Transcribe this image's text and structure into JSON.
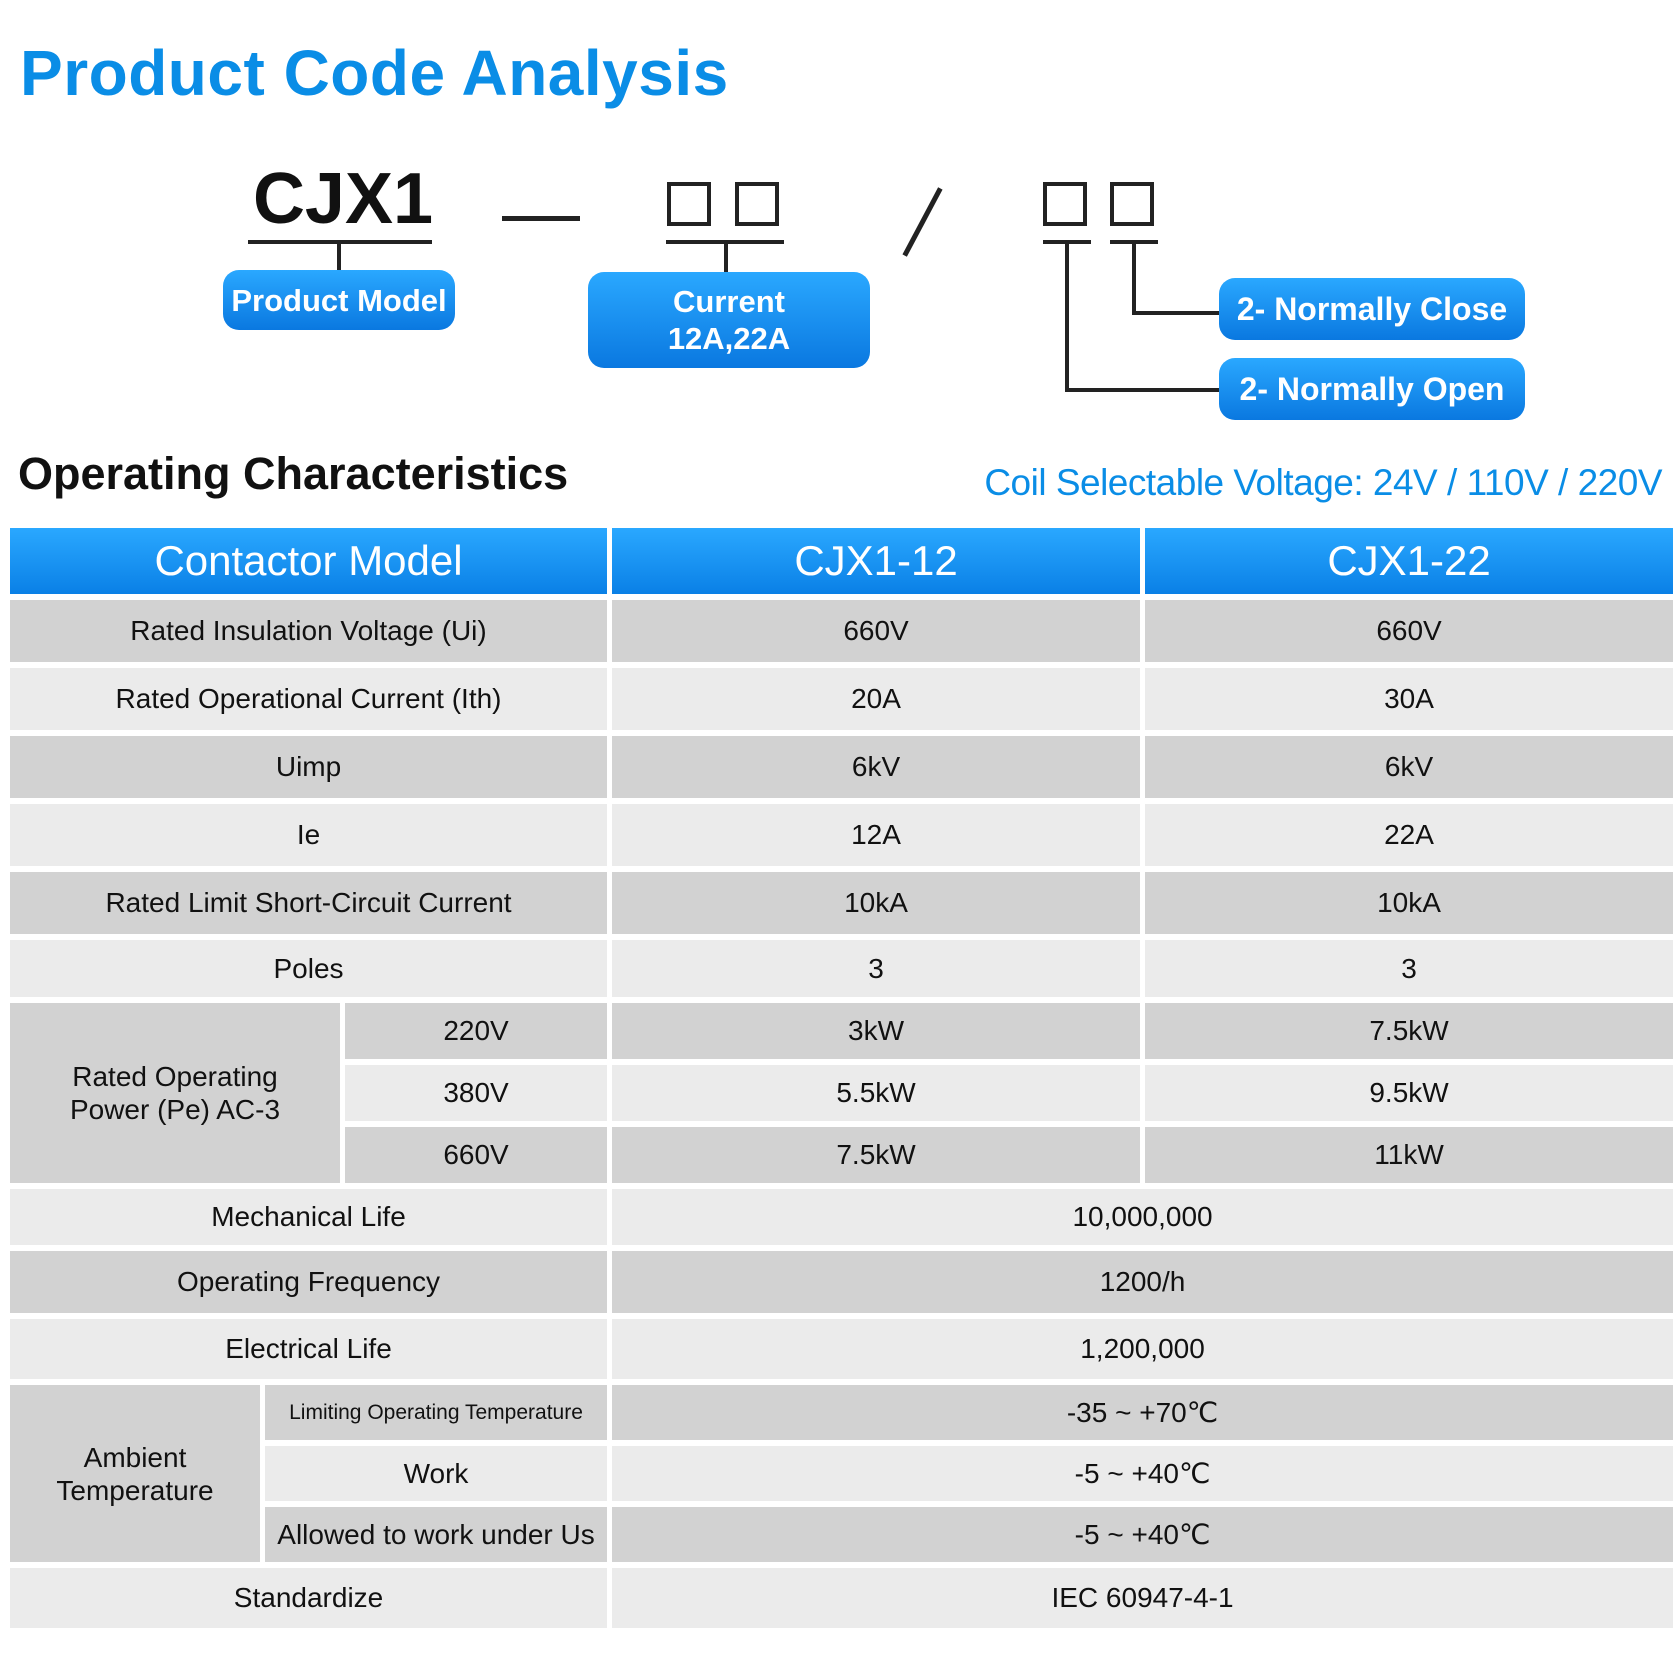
{
  "page_title": "Product Code Analysis",
  "code": {
    "model": "CJX1",
    "product_model_label": "Product Model",
    "current_label_line1": "Current",
    "current_label_line2": "12A,22A",
    "normally_close_label": "2- Normally Close",
    "normally_open_label": "2- Normally Open"
  },
  "section_title": "Operating Characteristics",
  "coil_voltage": "Coil Selectable Voltage: 24V / 110V / 220V",
  "table": {
    "headers": [
      "Contactor Model",
      "CJX1-12",
      "CJX1-22"
    ],
    "rows": [
      {
        "label": "Rated Insulation Voltage (Ui)",
        "v1": "660V",
        "v2": "660V"
      },
      {
        "label": "Rated Operational Current (Ith)",
        "v1": "20A",
        "v2": "30A"
      },
      {
        "label": "Uimp",
        "v1": "6kV",
        "v2": "6kV"
      },
      {
        "label": "Ie",
        "v1": "12A",
        "v2": "22A"
      },
      {
        "label": "Rated Limit Short-Circuit Current",
        "v1": "10kA",
        "v2": "10kA"
      },
      {
        "label": "Poles",
        "v1": "3",
        "v2": "3"
      }
    ],
    "power": {
      "label": "Rated Operating Power (Pe) AC-3",
      "rows": [
        {
          "voltage": "220V",
          "v1": "3kW",
          "v2": "7.5kW"
        },
        {
          "voltage": "380V",
          "v1": "5.5kW",
          "v2": "9.5kW"
        },
        {
          "voltage": "660V",
          "v1": "7.5kW",
          "v2": "11kW"
        }
      ]
    },
    "shared_rows": [
      {
        "label": "Mechanical Life",
        "value": "10,000,000"
      },
      {
        "label": "Operating Frequency",
        "value": "1200/h"
      },
      {
        "label": "Electrical Life",
        "value": "1,200,000"
      }
    ],
    "ambient": {
      "label": "Ambient Temperature",
      "rows": [
        {
          "label": "Limiting Operating Temperature",
          "value": "-35 ~ +70℃"
        },
        {
          "label": "Work",
          "value": "-5 ~ +40℃"
        },
        {
          "label": "Allowed to work under Us",
          "value": "-5 ~ +40℃"
        }
      ]
    },
    "standard": {
      "label": "Standardize",
      "value": "IEC 60947-4-1"
    }
  }
}
